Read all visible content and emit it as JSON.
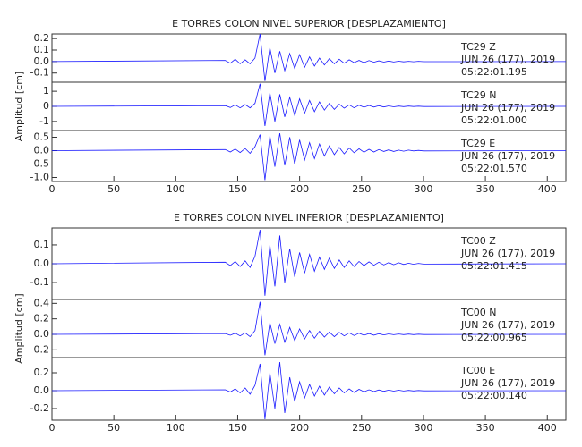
{
  "chart_data": [
    {
      "type": "line",
      "title": "E TORRES COLON NIVEL SUPERIOR [DESPLAZAMIENTO]",
      "annotations": [
        "TC29    Z",
        "JUN 26 (177), 2019",
        "05:22:01.195"
      ],
      "color": "#1a1aff",
      "xlim": [
        0,
        415
      ],
      "ylim": [
        -0.18,
        0.24
      ],
      "yticks": [
        0.2,
        0.1,
        {
          "value": 0,
          "label": "0.0"
        },
        -0.1
      ],
      "x": [
        0,
        140,
        144,
        148,
        152,
        156,
        160,
        164,
        168,
        172,
        176,
        180,
        184,
        188,
        192,
        196,
        200,
        204,
        208,
        212,
        216,
        220,
        224,
        228,
        232,
        236,
        240,
        244,
        248,
        252,
        256,
        260,
        264,
        268,
        272,
        276,
        280,
        284,
        288,
        292,
        296,
        300,
        415
      ],
      "values": [
        0,
        0.01,
        -0.015,
        0.02,
        -0.02,
        0.015,
        -0.02,
        0.03,
        0.24,
        -0.17,
        0.12,
        -0.1,
        0.09,
        -0.08,
        0.07,
        -0.06,
        0.06,
        -0.05,
        0.04,
        -0.04,
        0.03,
        -0.03,
        0.025,
        -0.02,
        0.02,
        -0.015,
        0.015,
        -0.01,
        0.01,
        -0.01,
        0.008,
        -0.006,
        0.006,
        -0.005,
        0.004,
        -0.004,
        0.003,
        -0.003,
        0.002,
        -0.002,
        0.002,
        -0.001,
        0
      ]
    },
    {
      "type": "line",
      "ylabel": "Amplitud [cm]",
      "annotations": [
        "TC29    N",
        "JUN 26 (177), 2019",
        "05:22:01.000"
      ],
      "color": "#1a1aff",
      "xlim": [
        0,
        415
      ],
      "ylim": [
        -1.6,
        1.6
      ],
      "yticks": [
        1,
        0,
        -1
      ],
      "x": [
        0,
        140,
        144,
        148,
        152,
        156,
        160,
        164,
        168,
        172,
        176,
        180,
        184,
        188,
        192,
        196,
        200,
        204,
        208,
        212,
        216,
        220,
        224,
        228,
        232,
        236,
        240,
        244,
        248,
        252,
        256,
        260,
        264,
        268,
        272,
        276,
        280,
        284,
        288,
        292,
        296,
        300,
        415
      ],
      "values": [
        0,
        0.05,
        -0.08,
        0.1,
        -0.1,
        0.12,
        -0.1,
        0.2,
        1.5,
        -1.3,
        0.9,
        -1.0,
        0.8,
        -0.7,
        0.6,
        -0.6,
        0.5,
        -0.45,
        0.4,
        -0.35,
        0.3,
        -0.25,
        0.2,
        -0.2,
        0.15,
        -0.12,
        0.1,
        -0.1,
        0.08,
        -0.06,
        0.06,
        -0.05,
        0.04,
        -0.04,
        0.03,
        -0.03,
        0.02,
        -0.02,
        0.02,
        -0.01,
        0.01,
        -0.01,
        0
      ]
    },
    {
      "type": "line",
      "annotations": [
        "TC29    E",
        "JUN 26 (177), 2019",
        "05:22:01.570"
      ],
      "color": "#1a1aff",
      "xlim": [
        0,
        415
      ],
      "ylim": [
        -1.15,
        0.75
      ],
      "yticks": [
        0.5,
        {
          "value": 0,
          "label": "0.0"
        },
        -0.5,
        {
          "value": -1,
          "label": "-1.0"
        }
      ],
      "xticks": [
        0,
        50,
        100,
        150,
        200,
        250,
        300,
        350,
        400
      ],
      "x": [
        0,
        140,
        144,
        148,
        152,
        156,
        160,
        164,
        168,
        172,
        176,
        180,
        184,
        188,
        192,
        196,
        200,
        204,
        208,
        212,
        216,
        220,
        224,
        228,
        232,
        236,
        240,
        244,
        248,
        252,
        256,
        260,
        264,
        268,
        272,
        276,
        280,
        284,
        288,
        292,
        296,
        300,
        415
      ],
      "values": [
        0,
        0.04,
        -0.05,
        0.06,
        -0.07,
        0.08,
        -0.1,
        0.15,
        0.6,
        -1.1,
        0.55,
        -0.6,
        0.65,
        -0.55,
        0.5,
        -0.5,
        0.4,
        -0.35,
        0.3,
        -0.3,
        0.25,
        -0.2,
        0.18,
        -0.15,
        0.12,
        -0.12,
        0.1,
        -0.08,
        0.07,
        -0.06,
        0.05,
        -0.05,
        0.04,
        -0.03,
        0.03,
        -0.03,
        0.02,
        -0.02,
        0.02,
        -0.01,
        0.01,
        -0.01,
        0
      ]
    },
    {
      "type": "line",
      "title": "E TORRES COLON NIVEL INFERIOR [DESPLAZAMIENTO]",
      "annotations": [
        "TC00    Z",
        "JUN 26 (177), 2019",
        "05:22:01.415"
      ],
      "color": "#1a1aff",
      "xlim": [
        0,
        415
      ],
      "ylim": [
        -0.19,
        0.19
      ],
      "yticks": [
        0.1,
        {
          "value": 0,
          "label": "0.0"
        },
        -0.1
      ],
      "x": [
        0,
        140,
        144,
        148,
        152,
        156,
        160,
        164,
        168,
        172,
        176,
        180,
        184,
        188,
        192,
        196,
        200,
        204,
        208,
        212,
        216,
        220,
        224,
        228,
        232,
        236,
        240,
        244,
        248,
        252,
        256,
        260,
        264,
        268,
        272,
        276,
        280,
        284,
        288,
        292,
        296,
        300,
        415
      ],
      "values": [
        0,
        0.008,
        -0.01,
        0.012,
        -0.015,
        0.015,
        -0.02,
        0.04,
        0.18,
        -0.17,
        0.1,
        -0.12,
        0.15,
        -0.1,
        0.08,
        -0.07,
        0.06,
        -0.05,
        0.05,
        -0.04,
        0.035,
        -0.03,
        0.03,
        -0.025,
        0.02,
        -0.02,
        0.015,
        -0.015,
        0.012,
        -0.01,
        0.01,
        -0.008,
        0.008,
        -0.006,
        0.006,
        -0.005,
        0.005,
        -0.004,
        0.003,
        -0.003,
        0.002,
        -0.002,
        0
      ]
    },
    {
      "type": "line",
      "ylabel": "Amplitud [cm]",
      "annotations": [
        "TC00    N",
        "JUN 26 (177), 2019",
        "05:22:00.965"
      ],
      "color": "#1a1aff",
      "xlim": [
        0,
        415
      ],
      "ylim": [
        -0.3,
        0.45
      ],
      "yticks": [
        0.4,
        0.2,
        {
          "value": 0,
          "label": "0.0"
        },
        -0.2
      ],
      "x": [
        0,
        140,
        144,
        148,
        152,
        156,
        160,
        164,
        168,
        172,
        176,
        180,
        184,
        188,
        192,
        196,
        200,
        204,
        208,
        212,
        216,
        220,
        224,
        228,
        232,
        236,
        240,
        244,
        248,
        252,
        256,
        260,
        264,
        268,
        272,
        276,
        280,
        284,
        288,
        292,
        296,
        300,
        415
      ],
      "values": [
        0,
        0.01,
        -0.012,
        0.015,
        -0.02,
        0.02,
        -0.03,
        0.05,
        0.42,
        -0.27,
        0.15,
        -0.12,
        0.13,
        -0.1,
        0.09,
        -0.08,
        0.07,
        -0.06,
        0.05,
        -0.05,
        0.04,
        -0.035,
        0.03,
        -0.03,
        0.025,
        -0.02,
        0.02,
        -0.015,
        0.015,
        -0.012,
        0.01,
        -0.01,
        0.008,
        -0.007,
        0.006,
        -0.005,
        0.005,
        -0.004,
        0.003,
        -0.003,
        0.002,
        -0.002,
        0
      ]
    },
    {
      "type": "line",
      "annotations": [
        "TC00    E",
        "JUN 26 (177), 2019",
        "05:22:00.140"
      ],
      "color": "#1a1aff",
      "xlim": [
        0,
        415
      ],
      "ylim": [
        -0.33,
        0.37
      ],
      "yticks": [
        0.2,
        {
          "value": 0,
          "label": "0.0"
        },
        -0.2
      ],
      "xticks": [
        0,
        50,
        100,
        150,
        200,
        250,
        300,
        350,
        400
      ],
      "x": [
        0,
        140,
        144,
        148,
        152,
        156,
        160,
        164,
        168,
        172,
        176,
        180,
        184,
        188,
        192,
        196,
        200,
        204,
        208,
        212,
        216,
        220,
        224,
        228,
        232,
        236,
        240,
        244,
        248,
        252,
        256,
        260,
        264,
        268,
        272,
        276,
        280,
        284,
        288,
        292,
        296,
        300,
        415
      ],
      "values": [
        0,
        0.01,
        -0.015,
        0.02,
        -0.025,
        0.03,
        -0.04,
        0.06,
        0.3,
        -0.32,
        0.2,
        -0.2,
        0.32,
        -0.25,
        0.15,
        -0.12,
        0.1,
        -0.08,
        0.07,
        -0.06,
        0.05,
        -0.05,
        0.04,
        -0.035,
        0.03,
        -0.025,
        0.02,
        -0.02,
        0.015,
        -0.012,
        0.01,
        -0.01,
        0.008,
        -0.007,
        0.006,
        -0.005,
        0.005,
        -0.004,
        0.003,
        -0.003,
        0.002,
        -0.002,
        0
      ]
    }
  ]
}
